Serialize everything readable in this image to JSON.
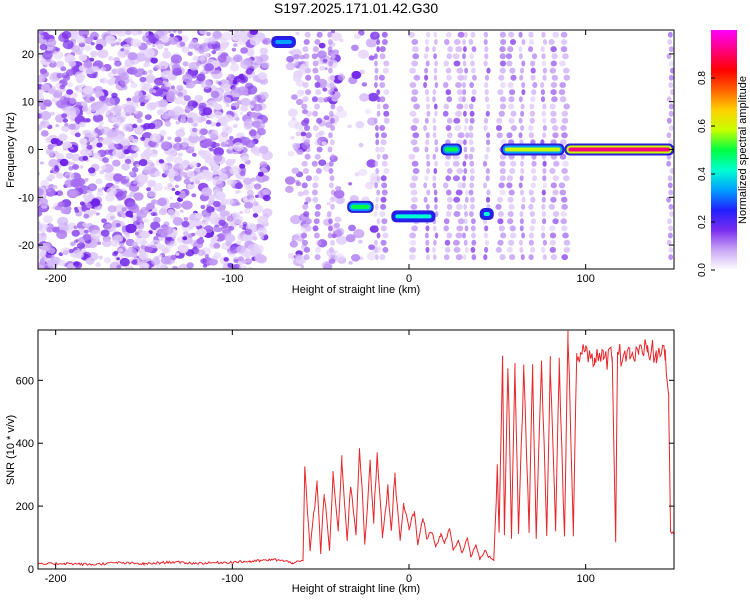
{
  "figure": {
    "title": "S197.2025.171.01.42.G30"
  },
  "chart_data": [
    {
      "type": "heatmap",
      "xlabel": "Height of straight line (km)",
      "ylabel": "Frequency (Hz)",
      "xlim": [
        -210,
        150
      ],
      "ylim": [
        -25,
        25
      ],
      "xticks": [
        -200,
        -100,
        0,
        100
      ],
      "yticks": [
        -20,
        -10,
        0,
        10,
        20
      ],
      "colorbar": {
        "label": "Normalized spectral amplitude",
        "range": [
          0,
          1
        ],
        "ticks": [
          "0.0",
          "0.2",
          "0.4",
          "0.6",
          "0.8"
        ],
        "colormap": [
          "#ffffff",
          "#c9a6f5",
          "#7a2cf0",
          "#2020ff",
          "#00a0ff",
          "#00ffd0",
          "#00ff40",
          "#c8ff00",
          "#ffd000",
          "#ff6000",
          "#ff0000",
          "#ff0080",
          "#ff00ff"
        ]
      },
      "features": [
        {
          "x": [
            -78,
            -64
          ],
          "y": 22.5,
          "amplitude": 0.35
        },
        {
          "x": [
            -35,
            -20
          ],
          "y": -12,
          "amplitude": 0.5
        },
        {
          "x": [
            -10,
            15
          ],
          "y": -14,
          "amplitude": 0.4
        },
        {
          "x": [
            18,
            30
          ],
          "y": 0,
          "amplitude": 0.5
        },
        {
          "x": [
            40,
            48
          ],
          "y": -13.5,
          "amplitude": 0.4
        },
        {
          "x": [
            52,
            88
          ],
          "y": 0,
          "amplitude": 0.6
        },
        {
          "x": [
            88,
            150
          ],
          "y": 0,
          "amplitude": 0.95
        }
      ]
    },
    {
      "type": "line",
      "xlabel": "Height of straight line (km)",
      "ylabel": "SNR (10 * v/v)",
      "xlim": [
        -210,
        150
      ],
      "ylim": [
        0,
        760
      ],
      "xticks": [
        -200,
        -100,
        0,
        100
      ],
      "yticks": [
        0,
        200,
        400,
        600
      ],
      "color": "#e8252a",
      "series": [
        {
          "x": [
            -210,
            -195,
            -180,
            -165,
            -150,
            -135,
            -120,
            -105,
            -90,
            -75,
            -66,
            -60,
            -59,
            -56,
            -52,
            -50,
            -48,
            -45,
            -43,
            -40,
            -38,
            -35,
            -33,
            -30,
            -28,
            -25,
            -22,
            -20,
            -18,
            -15,
            -12,
            -10,
            -8,
            -5,
            -3,
            0,
            3,
            5,
            8,
            10,
            13,
            15,
            18,
            20,
            23,
            25,
            28,
            30,
            33,
            35,
            38,
            40,
            43,
            45,
            48,
            50,
            51,
            53,
            54,
            56,
            58,
            60,
            62,
            65,
            68,
            70,
            72,
            75,
            78,
            80,
            83,
            85,
            88,
            90,
            93,
            95,
            100,
            105,
            110,
            115,
            117,
            118,
            120,
            125,
            130,
            135,
            140,
            145,
            147,
            148,
            150
          ],
          "y": [
            15,
            18,
            14,
            20,
            16,
            22,
            18,
            21,
            24,
            30,
            20,
            25,
            320,
            60,
            280,
            50,
            240,
            60,
            300,
            120,
            350,
            90,
            270,
            110,
            400,
            80,
            330,
            150,
            380,
            100,
            260,
            120,
            300,
            90,
            200,
            130,
            180,
            80,
            160,
            100,
            120,
            70,
            110,
            80,
            130,
            60,
            90,
            50,
            100,
            40,
            80,
            30,
            60,
            40,
            30,
            320,
            120,
            680,
            110,
            650,
            100,
            660,
            110,
            640,
            120,
            650,
            100,
            670,
            110,
            660,
            120,
            650,
            100,
            750,
            110,
            700,
            690,
            680,
            660,
            690,
            90,
            700,
            680,
            690,
            670,
            700,
            680,
            690,
            540,
            120,
            110
          ]
        }
      ]
    }
  ]
}
